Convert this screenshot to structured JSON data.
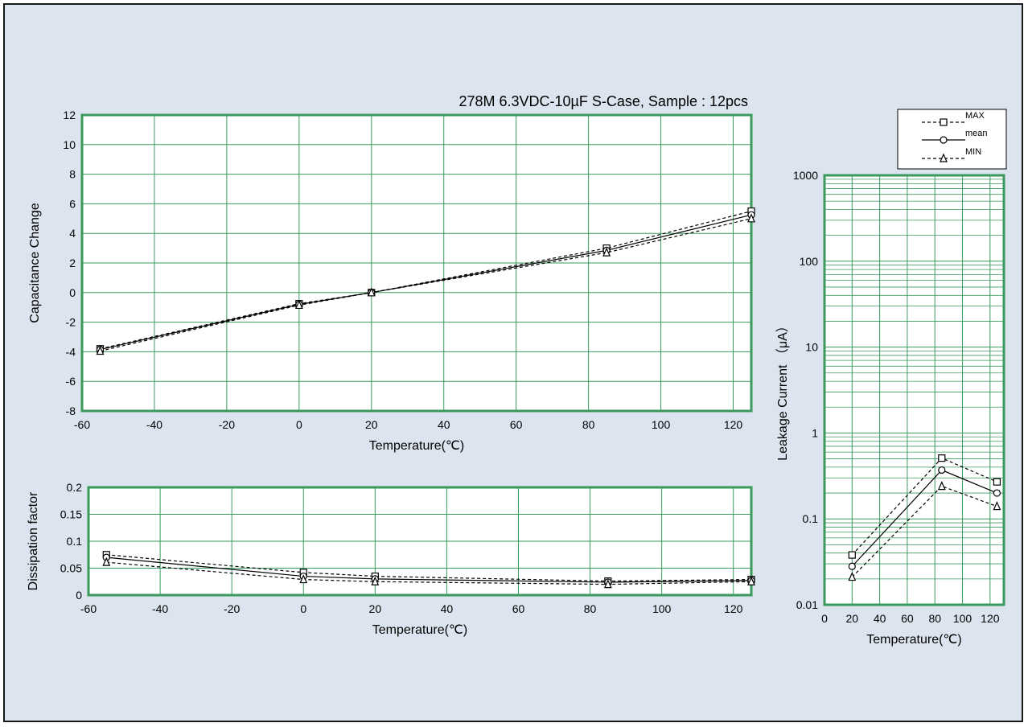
{
  "title": "278M 6.3VDC-10µF S-Case, Sample : 12pcs",
  "legend": {
    "max": "MAX",
    "mean": "mean",
    "min": "MIN"
  },
  "colors": {
    "background": "#dce5ef",
    "grid": "#3a9a5e",
    "series": "#000000"
  },
  "chart_data": [
    {
      "type": "line",
      "xlabel": "Temperature(℃)",
      "ylabel": "Capacitance Change",
      "xlim": [
        -60,
        125
      ],
      "ylim": [
        -8,
        12
      ],
      "xticks": [
        -60,
        -40,
        -20,
        0,
        20,
        40,
        60,
        80,
        100,
        120
      ],
      "yticks": [
        -8,
        -6,
        -4,
        -2,
        0,
        2,
        4,
        6,
        8,
        10,
        12
      ],
      "x": [
        -55,
        0,
        20,
        85,
        125
      ],
      "series": [
        {
          "name": "MAX",
          "values": [
            -3.8,
            -0.75,
            0,
            3.0,
            5.5
          ]
        },
        {
          "name": "mean",
          "values": [
            -3.85,
            -0.8,
            0,
            2.85,
            5.25
          ]
        },
        {
          "name": "MIN",
          "values": [
            -3.95,
            -0.85,
            0,
            2.7,
            5.0
          ]
        }
      ]
    },
    {
      "type": "line",
      "xlabel": "Temperature(℃)",
      "ylabel": "Dissipation factor",
      "xlim": [
        -60,
        125
      ],
      "ylim": [
        0,
        0.2
      ],
      "xticks": [
        -60,
        -40,
        -20,
        0,
        20,
        40,
        60,
        80,
        100,
        120
      ],
      "yticks": [
        0,
        0.05,
        0.1,
        0.15,
        0.2
      ],
      "ytick_labels": [
        "0",
        "0.05",
        "0.1",
        "0.15",
        "0.2"
      ],
      "x": [
        -55,
        0,
        20,
        85,
        125
      ],
      "series": [
        {
          "name": "MAX",
          "values": [
            0.075,
            0.042,
            0.035,
            0.026,
            0.029
          ]
        },
        {
          "name": "mean",
          "values": [
            0.07,
            0.035,
            0.03,
            0.024,
            0.027
          ]
        },
        {
          "name": "MIN",
          "values": [
            0.061,
            0.029,
            0.025,
            0.02,
            0.025
          ]
        }
      ]
    },
    {
      "type": "line",
      "xlabel": "Temperature(℃)",
      "ylabel": "Leakage Current （μA）",
      "xlim": [
        0,
        130
      ],
      "ylim": [
        0.01,
        1000
      ],
      "yscale": "log",
      "xticks": [
        0,
        20,
        40,
        60,
        80,
        100,
        120
      ],
      "yticks": [
        0.01,
        0.1,
        1,
        10,
        100,
        1000
      ],
      "ytick_labels": [
        "0.01",
        "0.1",
        "1",
        "10",
        "100",
        "1000"
      ],
      "x": [
        20,
        85,
        125
      ],
      "series": [
        {
          "name": "MAX",
          "values": [
            0.038,
            0.51,
            0.27
          ]
        },
        {
          "name": "mean",
          "values": [
            0.028,
            0.37,
            0.2
          ]
        },
        {
          "name": "MIN",
          "values": [
            0.021,
            0.24,
            0.14
          ]
        }
      ]
    }
  ]
}
